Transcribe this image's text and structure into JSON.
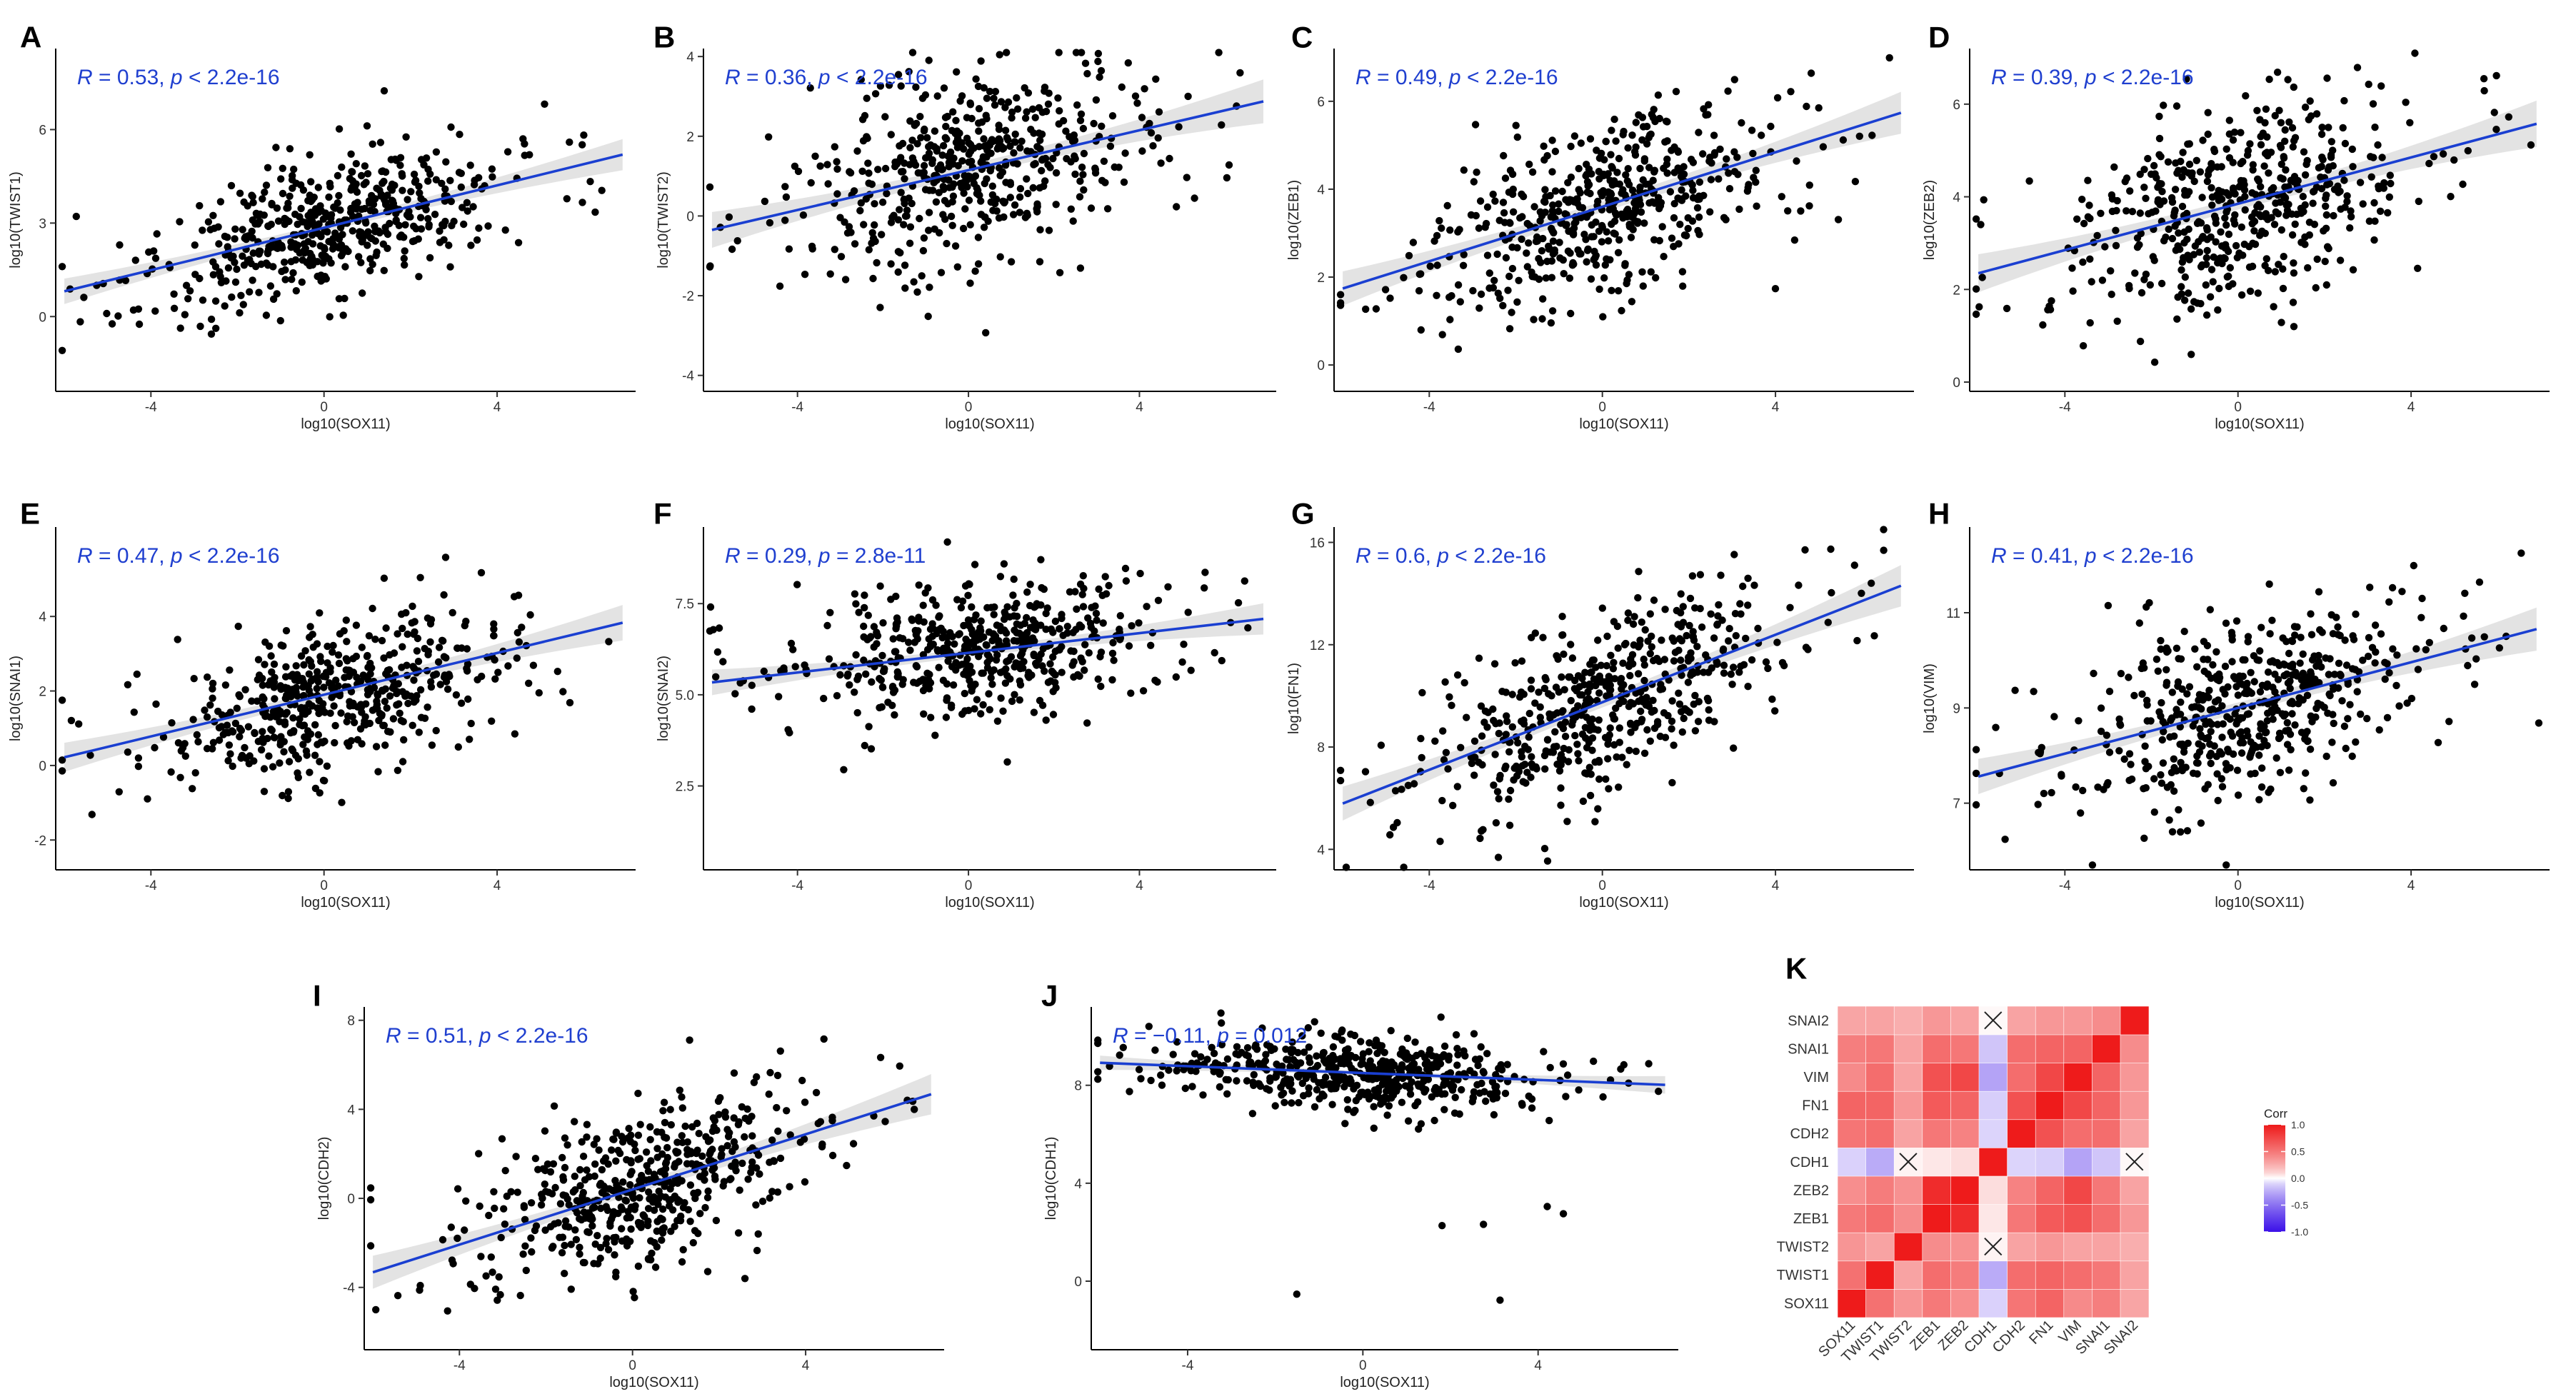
{
  "figure": {
    "x_label": "log10(SOX11)"
  },
  "chart_data": [
    {
      "id": "A",
      "type": "scatter",
      "letter": "A",
      "title": "",
      "xlabel": "log10(SOX11)",
      "ylabel": "log10(TWIST1)",
      "xlim": [
        -6.2,
        7.2
      ],
      "ylim": [
        -2.4,
        8.6
      ],
      "x_ticks": [
        -4,
        0,
        4
      ],
      "y_ticks": [
        0,
        3,
        6
      ],
      "annotation": {
        "r": "R = 0.53,",
        "p": "p < 2.2e-16"
      },
      "fit": {
        "intercept": 2.85,
        "slope": 0.34
      },
      "noise_sd": 1.05,
      "seed": 11
    },
    {
      "id": "B",
      "type": "scatter",
      "letter": "B",
      "title": "",
      "xlabel": "log10(SOX11)",
      "ylabel": "log10(TWIST2)",
      "xlim": [
        -6.2,
        7.2
      ],
      "ylim": [
        -4.4,
        4.2
      ],
      "x_ticks": [
        -4,
        0,
        4
      ],
      "y_ticks": [
        -4,
        -2,
        0,
        2,
        4
      ],
      "annotation": {
        "r": "R = 0.36,",
        "p": "p < 2.2e-16"
      },
      "fit": {
        "intercept": 1.15,
        "slope": 0.25
      },
      "noise_sd": 1.15,
      "seed": 23
    },
    {
      "id": "C",
      "type": "scatter",
      "letter": "C",
      "title": "",
      "xlabel": "log10(SOX11)",
      "ylabel": "log10(ZEB1)",
      "xlim": [
        -6.2,
        7.2
      ],
      "ylim": [
        -0.6,
        7.2
      ],
      "x_ticks": [
        -4,
        0,
        4
      ],
      "y_ticks": [
        0,
        2,
        4,
        6
      ],
      "annotation": {
        "r": "R = 0.49,",
        "p": "p < 2.2e-16"
      },
      "fit": {
        "intercept": 3.6,
        "slope": 0.31
      },
      "noise_sd": 1.0,
      "seed": 37
    },
    {
      "id": "D",
      "type": "scatter",
      "letter": "D",
      "title": "",
      "xlabel": "log10(SOX11)",
      "ylabel": "log10(ZEB2)",
      "xlim": [
        -6.2,
        7.2
      ],
      "ylim": [
        -0.2,
        7.2
      ],
      "x_ticks": [
        -4,
        0,
        4
      ],
      "y_ticks": [
        0,
        2,
        4,
        6
      ],
      "annotation": {
        "r": "R = 0.39,",
        "p": "p < 2.2e-16"
      },
      "fit": {
        "intercept": 3.85,
        "slope": 0.25
      },
      "noise_sd": 1.05,
      "seed": 41
    },
    {
      "id": "E",
      "type": "scatter",
      "letter": "E",
      "title": "",
      "xlabel": "log10(SOX11)",
      "ylabel": "log10(SNAI1)",
      "xlim": [
        -6.2,
        7.2
      ],
      "ylim": [
        -2.8,
        6.4
      ],
      "x_ticks": [
        -4,
        0,
        4
      ],
      "y_ticks": [
        -2,
        0,
        2,
        4
      ],
      "annotation": {
        "r": "R = 0.47,",
        "p": "p < 2.2e-16"
      },
      "fit": {
        "intercept": 1.9,
        "slope": 0.28
      },
      "noise_sd": 1.0,
      "seed": 53
    },
    {
      "id": "F",
      "type": "scatter",
      "letter": "F",
      "title": "",
      "xlabel": "log10(SOX11)",
      "ylabel": "log10(SNAI2)",
      "xlim": [
        -6.2,
        7.2
      ],
      "ylim": [
        0.2,
        9.6
      ],
      "x_ticks": [
        -4,
        0,
        4
      ],
      "y_ticks": [
        2.5,
        5.0,
        7.5
      ],
      "y_tick_labels": [
        "2.5",
        "5.0",
        "7.5"
      ],
      "annotation": {
        "r": "R = 0.29,",
        "p": "p = 2.8e-11"
      },
      "fit": {
        "intercept": 6.15,
        "slope": 0.135
      },
      "noise_sd": 0.9,
      "seed": 67
    },
    {
      "id": "G",
      "type": "scatter",
      "letter": "G",
      "title": "",
      "xlabel": "log10(SOX11)",
      "ylabel": "log10(FN1)",
      "xlim": [
        -6.2,
        7.2
      ],
      "ylim": [
        3.2,
        16.6
      ],
      "x_ticks": [
        -4,
        0,
        4
      ],
      "y_ticks": [
        4,
        8,
        12,
        16
      ],
      "annotation": {
        "r": "R = 0.6,",
        "p": "p < 2.2e-16"
      },
      "fit": {
        "intercept": 9.75,
        "slope": 0.66
      },
      "noise_sd": 1.7,
      "seed": 79
    },
    {
      "id": "H",
      "type": "scatter",
      "letter": "H",
      "title": "",
      "xlabel": "log10(SOX11)",
      "ylabel": "log10(VIM)",
      "xlim": [
        -6.2,
        7.2
      ],
      "ylim": [
        5.6,
        12.8
      ],
      "x_ticks": [
        -4,
        0,
        4
      ],
      "y_ticks": [
        7,
        9,
        11
      ],
      "annotation": {
        "r": "R = 0.41,",
        "p": "p < 2.2e-16"
      },
      "fit": {
        "intercept": 9.0,
        "slope": 0.24
      },
      "noise_sd": 0.95,
      "seed": 89
    },
    {
      "id": "I",
      "type": "scatter",
      "letter": "I",
      "title": "",
      "xlabel": "log10(SOX11)",
      "ylabel": "log10(CDH2)",
      "xlim": [
        -6.2,
        7.2
      ],
      "ylim": [
        -6.8,
        8.6
      ],
      "x_ticks": [
        -4,
        0,
        4
      ],
      "y_ticks": [
        -4,
        0,
        4,
        8
      ],
      "annotation": {
        "r": "R = 0.51,",
        "p": "p < 2.2e-16"
      },
      "fit": {
        "intercept": 0.4,
        "slope": 0.62
      },
      "noise_sd": 1.9,
      "seed": 97
    },
    {
      "id": "J",
      "type": "scatter",
      "letter": "J",
      "title": "",
      "xlabel": "log10(SOX11)",
      "ylabel": "log10(CDH1)",
      "xlim": [
        -6.2,
        7.2
      ],
      "ylim": [
        -2.8,
        11.2
      ],
      "x_ticks": [
        -4,
        0,
        4
      ],
      "y_ticks": [
        0,
        4,
        8
      ],
      "annotation": {
        "r": "R = −0.11,",
        "p": "p = 0.012"
      },
      "fit": {
        "intercept": 8.5,
        "slope": -0.07
      },
      "noise_sd": 0.75,
      "seed": 103
    },
    {
      "id": "K",
      "type": "heatmap",
      "letter": "K",
      "title": "",
      "x_labels": [
        "SOX11",
        "TWIST1",
        "TWIST2",
        "ZEB1",
        "ZEB2",
        "CDH1",
        "CDH2",
        "FN1",
        "VIM",
        "SNAI1",
        "SNAI2"
      ],
      "y_labels": [
        "SOX11",
        "TWIST1",
        "TWIST2",
        "ZEB1",
        "ZEB2",
        "CDH1",
        "CDH2",
        "FN1",
        "VIM",
        "SNAI1",
        "SNAI2"
      ],
      "matrix": [
        [
          1.0,
          0.53,
          0.36,
          0.49,
          0.39,
          -0.11,
          0.51,
          0.6,
          0.41,
          0.47,
          0.29
        ],
        [
          0.53,
          1.0,
          0.3,
          0.55,
          0.48,
          -0.25,
          0.55,
          0.6,
          0.55,
          0.5,
          0.3
        ],
        [
          0.36,
          0.3,
          1.0,
          0.4,
          0.38,
          0.02,
          0.3,
          0.35,
          0.3,
          0.3,
          0.25
        ],
        [
          0.49,
          0.55,
          0.4,
          1.0,
          0.9,
          0.05,
          0.5,
          0.65,
          0.7,
          0.55,
          0.35
        ],
        [
          0.39,
          0.48,
          0.38,
          0.9,
          1.0,
          0.08,
          0.45,
          0.6,
          0.75,
          0.5,
          0.3
        ],
        [
          -0.11,
          -0.25,
          0.02,
          0.05,
          0.08,
          1.0,
          -0.1,
          -0.12,
          -0.28,
          -0.15,
          0.01
        ],
        [
          0.51,
          0.55,
          0.3,
          0.5,
          0.45,
          -0.1,
          1.0,
          0.7,
          0.55,
          0.55,
          0.3
        ],
        [
          0.6,
          0.6,
          0.35,
          0.65,
          0.6,
          -0.12,
          0.7,
          1.0,
          0.75,
          0.6,
          0.35
        ],
        [
          0.41,
          0.55,
          0.3,
          0.7,
          0.75,
          -0.28,
          0.55,
          0.75,
          1.0,
          0.6,
          0.35
        ],
        [
          0.47,
          0.5,
          0.3,
          0.55,
          0.5,
          -0.15,
          0.55,
          0.6,
          0.6,
          1.0,
          0.4
        ],
        [
          0.29,
          0.3,
          0.25,
          0.35,
          0.3,
          0.01,
          0.3,
          0.35,
          0.35,
          0.4,
          1.0
        ]
      ],
      "crossed_cells": [
        [
          "CDH1",
          "TWIST2"
        ],
        [
          "CDH1",
          "SNAI2"
        ],
        [
          "TWIST2",
          "CDH1"
        ],
        [
          "SNAI2",
          "CDH1"
        ]
      ],
      "legend": {
        "title": "Corr",
        "ticks": [
          1.0,
          0.5,
          0.0,
          -0.5,
          -1.0
        ],
        "tick_labels": [
          "1.0",
          "0.5",
          "0.0",
          "-0.5",
          "-1.0"
        ],
        "colors": {
          "low": "#3b10e8",
          "mid": "#ffffff",
          "high": "#ee1b1b"
        }
      }
    }
  ]
}
